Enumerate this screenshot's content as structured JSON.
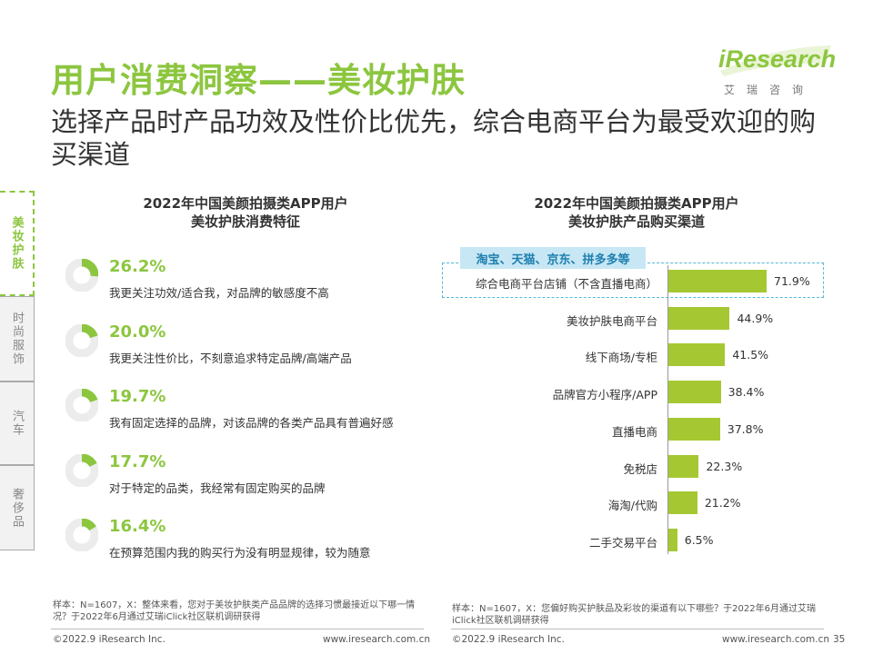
{
  "header": {
    "title": "用户消费洞察——美妆护肤",
    "subtitle": "选择产品时产品功效及性价比优先，综合电商平台为最受欢迎的购买渠道",
    "logo_brand": "iResearch",
    "logo_sub": "艾瑞咨询",
    "accent_color": "#8cc63f"
  },
  "sidebar": {
    "tabs": [
      {
        "label": "美妆护肤",
        "active": true
      },
      {
        "label": "时尚服饰",
        "active": false
      },
      {
        "label": "汽车",
        "active": false
      },
      {
        "label": "奢侈品",
        "active": false
      }
    ]
  },
  "left_chart": {
    "title_line1": "2022年中国美颜拍摄类APP用户",
    "title_line2": "美妆护肤消费特征",
    "note": "样本：N=1607，X：整体来看，您对于美妆护肤类产品品牌的选择习惯最接近以下哪一情况？于2022年6月通过艾瑞iClick社区联机调研获得"
  },
  "right_chart": {
    "title_line1": "2022年中国美颜拍摄类APP用户",
    "title_line2": "美妆护肤产品购买渠道",
    "highlight_tag": "淘宝、天猫、京东、拼多多等",
    "note": "样本：N=1607，X：您偏好购买护肤品及彩妆的渠道有以下哪些？于2022年6月通过艾瑞iClick社区联机调研获得"
  },
  "chart_data": [
    {
      "type": "pie",
      "title": "2022年中国美颜拍摄类APP用户美妆护肤消费特征",
      "categories": [
        "我更关注功效/适合我，对品牌的敏感度不高",
        "我更关注性价比，不刻意追求特定品牌/高端产品",
        "我有固定选择的品牌，对该品牌的各类产品具有普遍好感",
        "对于特定的品类，我经常有固定购买的品牌",
        "在预算范围内我的购买行为没有明显规律，较为随意"
      ],
      "values": [
        26.2,
        20.0,
        19.7,
        17.7,
        16.4
      ],
      "labels": [
        "26.2%",
        "20.0%",
        "19.7%",
        "17.7%",
        "16.4%"
      ]
    },
    {
      "type": "bar",
      "title": "2022年中国美颜拍摄类APP用户美妆护肤产品购买渠道",
      "categories": [
        "综合电商平台店铺（不含直播电商）",
        "美妆护肤电商平台",
        "线下商场/专柜",
        "品牌官方小程序/APP",
        "直播电商",
        "免税店",
        "海淘/代购",
        "二手交易平台"
      ],
      "values": [
        71.9,
        44.9,
        41.5,
        38.4,
        37.8,
        22.3,
        21.2,
        6.5
      ],
      "labels": [
        "71.9%",
        "44.9%",
        "41.5%",
        "38.4%",
        "37.8%",
        "22.3%",
        "21.2%",
        "6.5%"
      ],
      "xlim": [
        0,
        100
      ],
      "bar_color": "#a5c832"
    }
  ],
  "footer": {
    "left_copyright": "©2022.9 iResearch Inc.",
    "left_url": "www.iresearch.com.cn",
    "right_copyright": "©2022.9 iResearch Inc.",
    "right_url": "www.iresearch.com.cn",
    "page_number": "35"
  }
}
